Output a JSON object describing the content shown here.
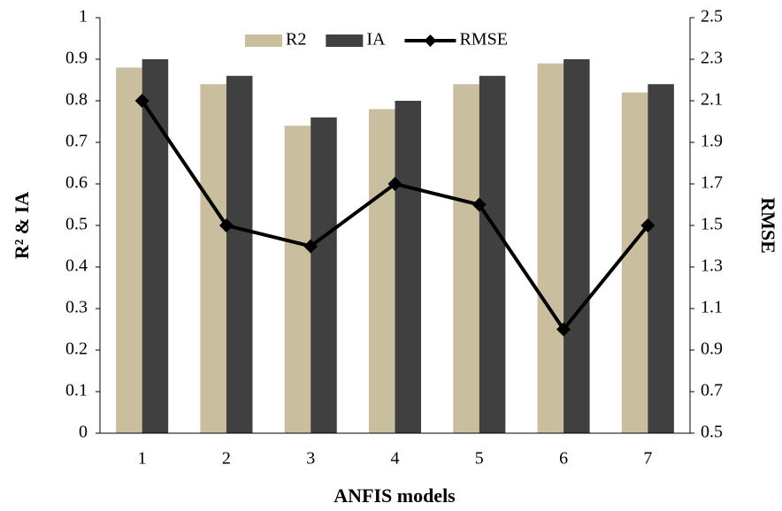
{
  "chart_data": {
    "type": "bar",
    "categories": [
      "1",
      "2",
      "3",
      "4",
      "5",
      "6",
      "7"
    ],
    "series": [
      {
        "name": "R2",
        "color": "#c9bf9f",
        "values": [
          0.88,
          0.84,
          0.74,
          0.78,
          0.84,
          0.89,
          0.82
        ]
      },
      {
        "name": "IA",
        "color": "#404040",
        "values": [
          0.9,
          0.86,
          0.76,
          0.8,
          0.86,
          0.9,
          0.84
        ]
      },
      {
        "name": "RMSE",
        "color": "#000000",
        "type": "line",
        "axis": "y2",
        "values": [
          2.1,
          1.5,
          1.4,
          1.7,
          1.6,
          1.0,
          1.5
        ]
      }
    ],
    "ylim": [
      0,
      1
    ],
    "yticks": [
      0,
      0.1,
      0.2,
      0.3,
      0.4,
      0.5,
      0.6,
      0.7,
      0.8,
      0.9,
      1
    ],
    "y2lim": [
      0.5,
      2.5
    ],
    "y2ticks": [
      0.5,
      0.7,
      0.9,
      1.1,
      1.3,
      1.5,
      1.7,
      1.9,
      2.1,
      2.3,
      2.5
    ],
    "xlabel": "ANFIS models",
    "ylabel": "R² & IA",
    "y2label": "RMSE",
    "legend": "top"
  }
}
